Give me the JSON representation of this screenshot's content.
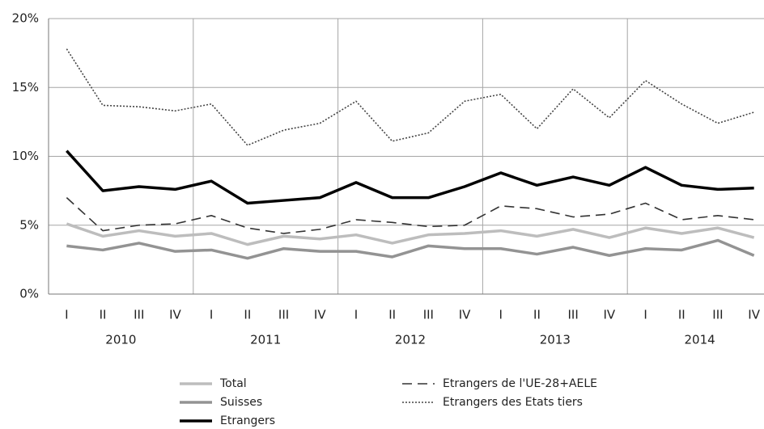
{
  "chart_data": {
    "type": "line",
    "categories": [
      "I",
      "II",
      "III",
      "IV",
      "I",
      "II",
      "III",
      "IV",
      "I",
      "II",
      "III",
      "IV",
      "I",
      "II",
      "III",
      "IV",
      "I",
      "II",
      "III",
      "IV"
    ],
    "years": [
      "2010",
      "2011",
      "2012",
      "2013",
      "2014"
    ],
    "ylim": [
      0,
      20
    ],
    "yticks": [
      {
        "value": 0,
        "label": "0%"
      },
      {
        "value": 5,
        "label": "5%"
      },
      {
        "value": 10,
        "label": "10%"
      },
      {
        "value": 15,
        "label": "15%"
      },
      {
        "value": 20,
        "label": "20%"
      }
    ],
    "grid": true,
    "series": [
      {
        "name": "Total",
        "color": "#bdbdbd",
        "style": "solid",
        "values": [
          5.1,
          4.2,
          4.6,
          4.2,
          4.4,
          3.6,
          4.2,
          4.0,
          4.3,
          3.7,
          4.3,
          4.4,
          4.6,
          4.2,
          4.7,
          4.1,
          4.8,
          4.4,
          4.8,
          4.1
        ]
      },
      {
        "name": "Suisses",
        "color": "#939393",
        "style": "solid",
        "values": [
          3.5,
          3.2,
          3.7,
          3.1,
          3.2,
          2.6,
          3.3,
          3.1,
          3.1,
          2.7,
          3.5,
          3.3,
          3.3,
          2.9,
          3.4,
          2.8,
          3.3,
          3.2,
          3.9,
          2.8
        ]
      },
      {
        "name": "Etrangers",
        "color": "#000000",
        "style": "solid",
        "values": [
          10.4,
          7.5,
          7.8,
          7.6,
          8.2,
          6.6,
          6.8,
          7.0,
          8.1,
          7.0,
          7.0,
          7.8,
          8.8,
          7.9,
          8.5,
          7.9,
          9.2,
          7.9,
          7.6,
          7.7
        ]
      },
      {
        "name": "Etrangers de l'UE-28+AELE",
        "color": "#333333",
        "style": "dashed",
        "values": [
          7.0,
          4.6,
          5.0,
          5.1,
          5.7,
          4.8,
          4.4,
          4.7,
          5.4,
          5.2,
          4.9,
          5.0,
          6.4,
          6.2,
          5.6,
          5.8,
          6.6,
          5.4,
          5.7,
          5.4
        ]
      },
      {
        "name": "Etrangers des Etats tiers",
        "color": "#444444",
        "style": "dotted",
        "values": [
          17.8,
          13.7,
          13.6,
          13.3,
          13.8,
          10.8,
          11.9,
          12.4,
          14.0,
          11.1,
          11.7,
          14.0,
          14.5,
          12.0,
          14.9,
          12.8,
          15.5,
          13.8,
          12.4,
          13.2
        ]
      }
    ]
  }
}
